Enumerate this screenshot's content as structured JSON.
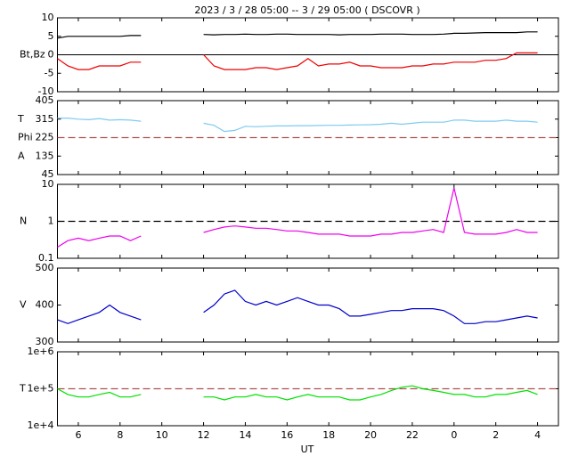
{
  "title": "2023 /  3 / 28   05:00 --  3 / 29   05:00 ( DSCOVR )",
  "x_axis": {
    "label": "UT",
    "xlim": [
      5,
      29
    ],
    "xticks": [
      6,
      8,
      10,
      12,
      14,
      16,
      18,
      20,
      22,
      {
        "value": 24,
        "label": "0"
      },
      {
        "value": 26,
        "label": "2"
      },
      {
        "value": 28,
        "label": "4"
      }
    ],
    "x": [
      5,
      5.5,
      6,
      6.5,
      7,
      7.5,
      8,
      8.5,
      9,
      9.5,
      10,
      10.5,
      11,
      11.5,
      12,
      12.5,
      13,
      13.5,
      14,
      14.5,
      15,
      15.5,
      16,
      16.5,
      17,
      17.5,
      18,
      18.5,
      19,
      19.5,
      20,
      20.5,
      21,
      21.5,
      22,
      22.5,
      23,
      23.5,
      24,
      24.5,
      25,
      25.5,
      26,
      26.5,
      27,
      27.5,
      28,
      28.5,
      29
    ]
  },
  "chart_data": [
    {
      "type": "line",
      "ylabels": [
        "Bt,Bz"
      ],
      "ylim": [
        -10,
        10
      ],
      "yticks": [
        -10,
        -5,
        0,
        5,
        10
      ],
      "hline": 0,
      "hline_color": "#000000",
      "hline_dash": false,
      "series": [
        {
          "color": "#000000",
          "values": [
            4.5,
            5,
            5,
            5,
            5,
            5,
            5,
            5.2,
            5.2,
            null,
            null,
            null,
            null,
            null,
            5.5,
            5.4,
            5.5,
            5.5,
            5.6,
            5.5,
            5.5,
            5.6,
            5.6,
            5.5,
            5.5,
            5.5,
            5.5,
            5.4,
            5.5,
            5.5,
            5.5,
            5.6,
            5.6,
            5.6,
            5.5,
            5.5,
            5.5,
            5.6,
            5.8,
            5.8,
            5.9,
            6,
            6,
            6,
            6,
            6.2,
            6.2,
            null,
            null
          ]
        },
        {
          "color": "#ee0000",
          "values": [
            -1,
            -3,
            -4,
            -4,
            -3,
            -3,
            -3,
            -2,
            -2,
            null,
            null,
            null,
            null,
            null,
            0,
            -3,
            -4,
            -4,
            -4,
            -3.5,
            -3.5,
            -4,
            -3.5,
            -3,
            -1,
            -3,
            -2.5,
            -2.5,
            -2,
            -3,
            -3,
            -3.5,
            -3.5,
            -3.5,
            -3,
            -3,
            -2.5,
            -2.5,
            -2,
            -2,
            -2,
            -1.5,
            -1.5,
            -1,
            0.5,
            0.5,
            0.5,
            null,
            null
          ]
        }
      ]
    },
    {
      "type": "line",
      "ylabels": [
        "T",
        "Phi",
        "A"
      ],
      "ylim": [
        45,
        405
      ],
      "yticks": [
        45,
        135,
        225,
        315,
        405
      ],
      "hline": 225,
      "hline_color": "#b05050",
      "hline_dash": true,
      "series": [
        {
          "color": "#7ecbf0",
          "values": [
            320,
            320,
            315,
            312,
            318,
            310,
            312,
            310,
            305,
            null,
            null,
            null,
            null,
            null,
            295,
            285,
            255,
            260,
            280,
            278,
            280,
            282,
            282,
            283,
            283,
            284,
            285,
            285,
            286,
            287,
            288,
            290,
            295,
            290,
            295,
            300,
            300,
            300,
            310,
            310,
            305,
            305,
            305,
            310,
            305,
            305,
            300,
            null,
            null
          ]
        }
      ]
    },
    {
      "type": "line",
      "ylabels": [
        "N"
      ],
      "log": true,
      "ylim": [
        0.1,
        10
      ],
      "yticks": [
        0.1,
        1,
        10
      ],
      "hline": 1,
      "hline_color": "#000000",
      "hline_dash": true,
      "series": [
        {
          "color": "#ee00ee",
          "values": [
            0.2,
            0.3,
            0.35,
            0.3,
            0.35,
            0.4,
            0.4,
            0.3,
            0.4,
            null,
            null,
            null,
            null,
            null,
            0.5,
            0.6,
            0.7,
            0.75,
            0.7,
            0.65,
            0.65,
            0.6,
            0.55,
            0.55,
            0.5,
            0.45,
            0.45,
            0.45,
            0.4,
            0.4,
            0.4,
            0.45,
            0.45,
            0.5,
            0.5,
            0.55,
            0.6,
            0.5,
            8,
            0.5,
            0.45,
            0.45,
            0.45,
            0.5,
            0.6,
            0.5,
            0.5,
            null,
            null
          ]
        }
      ]
    },
    {
      "type": "line",
      "ylabels": [
        "V"
      ],
      "ylim": [
        300,
        500
      ],
      "yticks": [
        300,
        400,
        500
      ],
      "series": [
        {
          "color": "#0000cc",
          "values": [
            360,
            350,
            360,
            370,
            380,
            400,
            380,
            370,
            360,
            null,
            null,
            null,
            null,
            null,
            380,
            400,
            430,
            440,
            410,
            400,
            410,
            400,
            410,
            420,
            410,
            400,
            400,
            390,
            370,
            370,
            375,
            380,
            385,
            385,
            390,
            390,
            390,
            385,
            370,
            350,
            350,
            355,
            355,
            360,
            365,
            370,
            365,
            null,
            null
          ]
        }
      ]
    },
    {
      "type": "line",
      "ylabels": [
        "T"
      ],
      "log": true,
      "ylim": [
        10000,
        1000000
      ],
      "yticks": [
        {
          "value": 10000,
          "label": "1e+4"
        },
        {
          "value": 100000,
          "label": "1e+5"
        },
        {
          "value": 1000000,
          "label": "1e+6"
        }
      ],
      "hline": 100000,
      "hline_color": "#b05050",
      "hline_dash": true,
      "series": [
        {
          "color": "#00e000",
          "values": [
            100000,
            70000,
            60000,
            60000,
            70000,
            80000,
            60000,
            60000,
            70000,
            null,
            null,
            null,
            null,
            null,
            60000,
            60000,
            50000,
            60000,
            60000,
            70000,
            60000,
            60000,
            50000,
            60000,
            70000,
            60000,
            60000,
            60000,
            50000,
            50000,
            60000,
            70000,
            90000,
            110000,
            120000,
            100000,
            90000,
            80000,
            70000,
            70000,
            60000,
            60000,
            70000,
            70000,
            80000,
            90000,
            70000,
            null,
            null
          ]
        }
      ]
    }
  ]
}
